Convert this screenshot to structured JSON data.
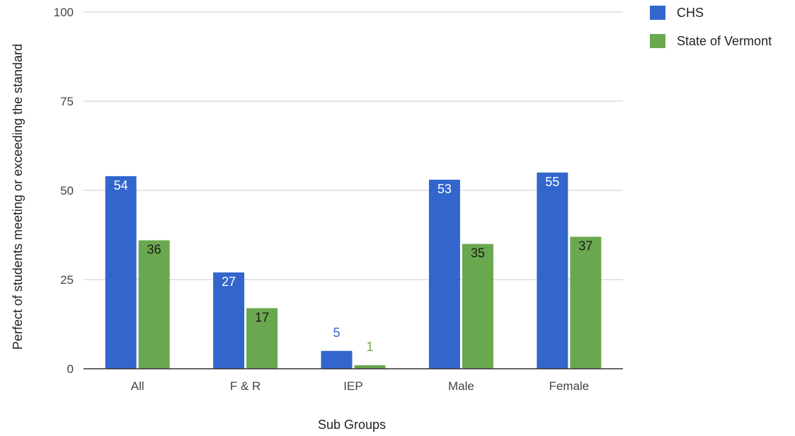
{
  "chart_data": {
    "type": "bar",
    "title": "",
    "xlabel": "Sub Groups",
    "ylabel": "Perfect of students meeting or exceeding the standard",
    "categories": [
      "All",
      "F & R",
      "IEP",
      "Male",
      "Female"
    ],
    "series": [
      {
        "name": "CHS",
        "values": [
          54,
          27,
          5,
          53,
          55
        ],
        "color": "#3366cc"
      },
      {
        "name": "State of Vermont",
        "values": [
          36,
          17,
          1,
          35,
          37
        ],
        "color": "#6aa84f"
      }
    ],
    "ylim": [
      0,
      100
    ],
    "yticks": [
      0,
      25,
      50,
      75,
      100
    ],
    "grid": true,
    "legend": "top-right",
    "data_labels": true
  }
}
